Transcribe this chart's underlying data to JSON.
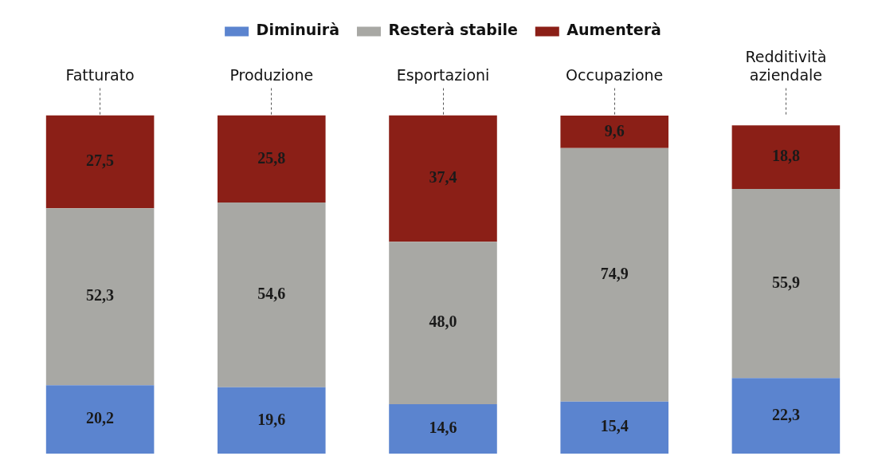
{
  "chart_data": {
    "type": "bar",
    "stacked": true,
    "legend": "top",
    "categories": [
      "Fatturato",
      "Produzione",
      "Esportazioni",
      "Occupazione",
      "Redditività aziendale"
    ],
    "series": [
      {
        "name": "Diminuirà",
        "color": "#5b84cf",
        "values": [
          20.2,
          19.6,
          14.6,
          15.4,
          22.3
        ],
        "value_labels": [
          "20,2",
          "19,6",
          "14,6",
          "15,4",
          "22,3"
        ]
      },
      {
        "name": "Resterà stabile",
        "color": "#a8a8a4",
        "values": [
          52.3,
          54.6,
          48.0,
          74.9,
          55.9
        ],
        "value_labels": [
          "52,3",
          "54,6",
          "48,0",
          "74,9",
          "55,9"
        ]
      },
      {
        "name": "Aumenterà",
        "color": "#8b1f17",
        "values": [
          27.5,
          25.8,
          37.4,
          9.6,
          18.8
        ],
        "value_labels": [
          "27,5",
          "25,8",
          "37,4",
          "9,6",
          "18,8"
        ]
      }
    ]
  }
}
